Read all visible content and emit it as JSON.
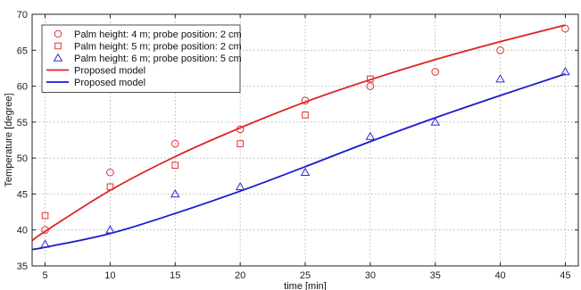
{
  "chart_data": {
    "type": "scatter",
    "title": "",
    "xlabel": "time [min]",
    "ylabel": "Temperature [degree]",
    "xlim": [
      4,
      46
    ],
    "ylim": [
      35,
      70
    ],
    "xticks": [
      5,
      10,
      15,
      20,
      25,
      30,
      35,
      40,
      45
    ],
    "yticks": [
      35,
      40,
      45,
      50,
      55,
      60,
      65,
      70
    ],
    "grid": true,
    "legend_position": "top-left",
    "series": [
      {
        "name": "Palm height: 4 m; probe position: 2 cm",
        "kind": "marker",
        "marker": "circle",
        "color": "#e03030",
        "x": [
          5,
          10,
          15,
          20,
          25,
          30,
          35,
          40,
          45
        ],
        "y": [
          40,
          48,
          52,
          54,
          58,
          60,
          62,
          65,
          68
        ]
      },
      {
        "name": "Palm height: 5 m; probe position: 2 cm",
        "kind": "marker",
        "marker": "square",
        "color": "#e03030",
        "x": [
          5,
          10,
          15,
          20,
          25,
          30
        ],
        "y": [
          42,
          46,
          49,
          52,
          56,
          61
        ]
      },
      {
        "name": "Palm height: 6 m; probe position: 5 cm",
        "kind": "marker",
        "marker": "triangle",
        "color": "#2a2ad0",
        "x": [
          5,
          10,
          15,
          20,
          25,
          30,
          35,
          40,
          45
        ],
        "y": [
          38,
          40,
          45,
          46,
          48,
          53,
          55,
          61,
          62
        ]
      },
      {
        "name": "Proposed model",
        "kind": "line",
        "color": "#e02020",
        "x": [
          4,
          5,
          10,
          15,
          20,
          25,
          30,
          35,
          40,
          45
        ],
        "y": [
          38.5,
          39.8,
          45.5,
          50.2,
          54.2,
          57.8,
          60.9,
          63.7,
          66.2,
          68.5
        ]
      },
      {
        "name": "Proposed model",
        "kind": "line",
        "color": "#1a1acc",
        "x": [
          4,
          5,
          10,
          15,
          20,
          25,
          30,
          35,
          40,
          45
        ],
        "y": [
          37.3,
          37.6,
          39.5,
          42.3,
          45.4,
          48.8,
          52.3,
          55.6,
          58.7,
          61.7
        ]
      }
    ]
  }
}
